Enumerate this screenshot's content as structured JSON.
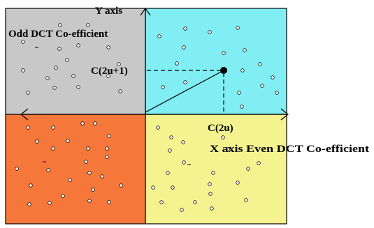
{
  "labels": {
    "y_axis": "Y axis",
    "odd_coeff": "Odd DCT Co-efficient",
    "c_2u_plus_1": "C(2u+1)",
    "c_2u": "C(2u)",
    "x_axis_even": "X axis Even DCT Co-efficient"
  },
  "colors": {
    "top_left": "#c8c8c8",
    "top_right": "#80eef2",
    "bottom_left": "#f5773a",
    "bottom_right": "#f5f290"
  }
}
